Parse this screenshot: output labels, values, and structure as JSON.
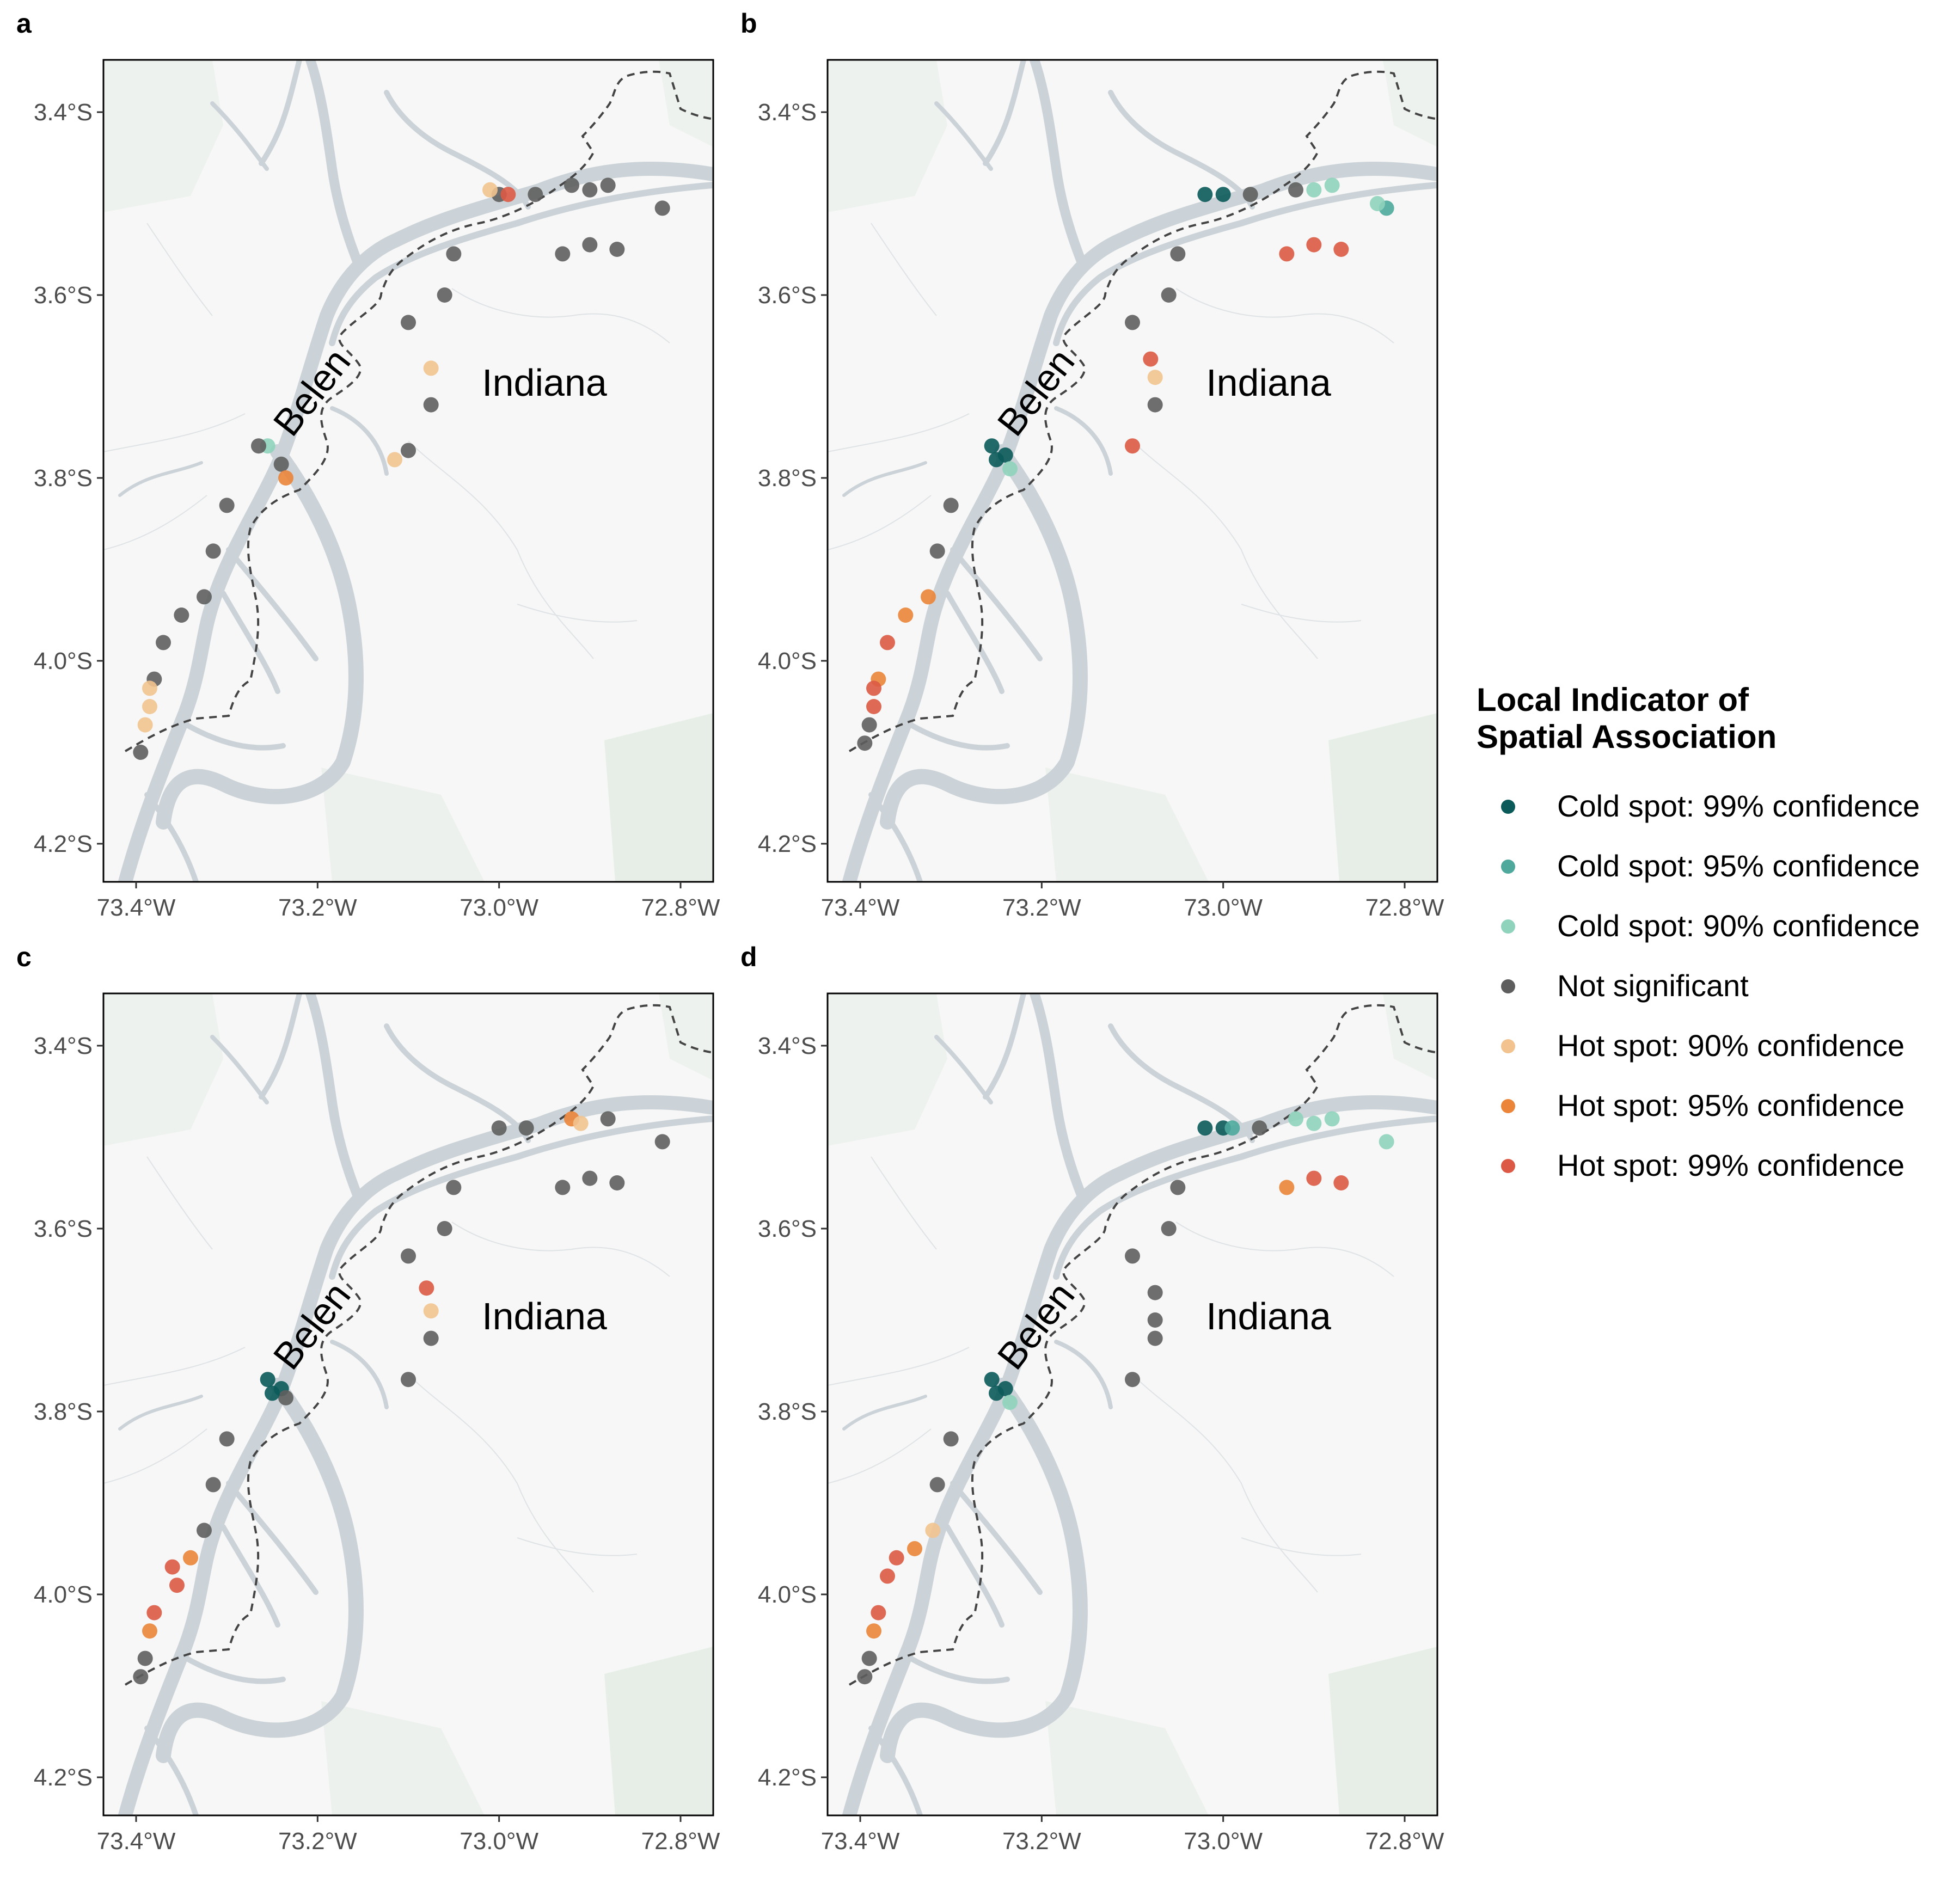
{
  "figure": {
    "panels": [
      {
        "letter": "a"
      },
      {
        "letter": "b"
      },
      {
        "letter": "c"
      },
      {
        "letter": "d"
      }
    ],
    "lon_ticks": [
      {
        "value": -73.4,
        "label": "73.4°W"
      },
      {
        "value": -73.2,
        "label": "73.2°W"
      },
      {
        "value": -73.0,
        "label": "73.0°W"
      },
      {
        "value": -72.8,
        "label": "72.8°W"
      }
    ],
    "lat_ticks": [
      {
        "value": -3.4,
        "label": "3.4°S"
      },
      {
        "value": -3.6,
        "label": "3.6°S"
      },
      {
        "value": -3.8,
        "label": "3.8°S"
      },
      {
        "value": -4.0,
        "label": "4.0°S"
      },
      {
        "value": -4.2,
        "label": "4.2°S"
      }
    ],
    "places": [
      {
        "name": "Belen",
        "lon": -73.195,
        "lat": -3.715,
        "rotate": -52
      },
      {
        "name": "Indiana",
        "lon": -72.95,
        "lat": -3.71,
        "rotate": 0
      }
    ],
    "legend": {
      "title_line1": "Local Indicator of",
      "title_line2": "Spatial Association",
      "items": [
        {
          "label": "Cold spot: 99% confidence",
          "color": "#0b5a5a"
        },
        {
          "label": "Cold spot: 95% confidence",
          "color": "#4ea89c"
        },
        {
          "label": "Cold spot: 90% confidence",
          "color": "#8fd3bd"
        },
        {
          "label": "Not significant",
          "color": "#5e5e5e"
        },
        {
          "label": "Hot spot: 90% confidence",
          "color": "#f2c38f"
        },
        {
          "label": "Hot spot: 95% confidence",
          "color": "#ea853a"
        },
        {
          "label": "Hot spot: 99% confidence",
          "color": "#dc5a45"
        }
      ]
    }
  },
  "chart_data": {
    "type": "scatter",
    "xlim": [
      -73.42,
      -72.76
    ],
    "ylim": [
      -4.24,
      -3.35
    ],
    "grid": false,
    "legend_position": "right",
    "panels": [
      {
        "letter": "a",
        "points": [
          [
            -73.0,
            -3.49,
            "ns"
          ],
          [
            -72.99,
            -3.49,
            "hot99"
          ],
          [
            -73.01,
            -3.485,
            "hot90"
          ],
          [
            -72.96,
            -3.49,
            "ns"
          ],
          [
            -72.92,
            -3.48,
            "ns"
          ],
          [
            -72.9,
            -3.485,
            "ns"
          ],
          [
            -72.88,
            -3.48,
            "ns"
          ],
          [
            -72.82,
            -3.505,
            "ns"
          ],
          [
            -72.9,
            -3.545,
            "ns"
          ],
          [
            -72.87,
            -3.55,
            "ns"
          ],
          [
            -72.93,
            -3.555,
            "ns"
          ],
          [
            -73.05,
            -3.555,
            "ns"
          ],
          [
            -73.06,
            -3.6,
            "ns"
          ],
          [
            -73.1,
            -3.63,
            "ns"
          ],
          [
            -73.075,
            -3.68,
            "hot90"
          ],
          [
            -73.075,
            -3.72,
            "ns"
          ],
          [
            -73.1,
            -3.77,
            "ns"
          ],
          [
            -73.115,
            -3.78,
            "hot90"
          ],
          [
            -73.255,
            -3.765,
            "cold90"
          ],
          [
            -73.24,
            -3.785,
            "ns"
          ],
          [
            -73.235,
            -3.8,
            "hot95"
          ],
          [
            -73.265,
            -3.765,
            "ns"
          ],
          [
            -73.3,
            -3.83,
            "ns"
          ],
          [
            -73.315,
            -3.88,
            "ns"
          ],
          [
            -73.325,
            -3.93,
            "ns"
          ],
          [
            -73.35,
            -3.95,
            "ns"
          ],
          [
            -73.37,
            -3.98,
            "ns"
          ],
          [
            -73.38,
            -4.02,
            "ns"
          ],
          [
            -73.385,
            -4.03,
            "hot90"
          ],
          [
            -73.385,
            -4.05,
            "hot90"
          ],
          [
            -73.39,
            -4.07,
            "hot90"
          ],
          [
            -73.395,
            -4.1,
            "ns"
          ]
        ]
      },
      {
        "letter": "b",
        "points": [
          [
            -73.02,
            -3.49,
            "cold99"
          ],
          [
            -73.0,
            -3.49,
            "cold99"
          ],
          [
            -72.97,
            -3.49,
            "ns"
          ],
          [
            -72.92,
            -3.485,
            "ns"
          ],
          [
            -72.9,
            -3.485,
            "cold90"
          ],
          [
            -72.88,
            -3.48,
            "cold90"
          ],
          [
            -72.82,
            -3.505,
            "cold95"
          ],
          [
            -72.83,
            -3.5,
            "cold90"
          ],
          [
            -72.9,
            -3.545,
            "hot99"
          ],
          [
            -72.87,
            -3.55,
            "hot99"
          ],
          [
            -72.93,
            -3.555,
            "hot99"
          ],
          [
            -73.05,
            -3.555,
            "ns"
          ],
          [
            -73.06,
            -3.6,
            "ns"
          ],
          [
            -73.1,
            -3.63,
            "ns"
          ],
          [
            -73.08,
            -3.67,
            "hot99"
          ],
          [
            -73.075,
            -3.69,
            "hot90"
          ],
          [
            -73.075,
            -3.72,
            "ns"
          ],
          [
            -73.1,
            -3.765,
            "hot99"
          ],
          [
            -73.255,
            -3.765,
            "cold99"
          ],
          [
            -73.24,
            -3.775,
            "cold99"
          ],
          [
            -73.235,
            -3.79,
            "cold90"
          ],
          [
            -73.25,
            -3.78,
            "cold99"
          ],
          [
            -73.3,
            -3.83,
            "ns"
          ],
          [
            -73.315,
            -3.88,
            "ns"
          ],
          [
            -73.325,
            -3.93,
            "hot95"
          ],
          [
            -73.35,
            -3.95,
            "hot95"
          ],
          [
            -73.37,
            -3.98,
            "hot99"
          ],
          [
            -73.38,
            -4.02,
            "hot95"
          ],
          [
            -73.385,
            -4.03,
            "hot99"
          ],
          [
            -73.385,
            -4.05,
            "hot99"
          ],
          [
            -73.39,
            -4.07,
            "ns"
          ],
          [
            -73.395,
            -4.09,
            "ns"
          ]
        ]
      },
      {
        "letter": "c",
        "points": [
          [
            -73.0,
            -3.49,
            "ns"
          ],
          [
            -72.97,
            -3.49,
            "ns"
          ],
          [
            -72.92,
            -3.48,
            "hot95"
          ],
          [
            -72.91,
            -3.485,
            "hot90"
          ],
          [
            -72.88,
            -3.48,
            "ns"
          ],
          [
            -72.82,
            -3.505,
            "ns"
          ],
          [
            -72.9,
            -3.545,
            "ns"
          ],
          [
            -72.87,
            -3.55,
            "ns"
          ],
          [
            -72.93,
            -3.555,
            "ns"
          ],
          [
            -73.05,
            -3.555,
            "ns"
          ],
          [
            -73.06,
            -3.6,
            "ns"
          ],
          [
            -73.1,
            -3.63,
            "ns"
          ],
          [
            -73.08,
            -3.665,
            "hot99"
          ],
          [
            -73.075,
            -3.69,
            "hot90"
          ],
          [
            -73.075,
            -3.72,
            "ns"
          ],
          [
            -73.1,
            -3.765,
            "ns"
          ],
          [
            -73.255,
            -3.765,
            "cold99"
          ],
          [
            -73.24,
            -3.775,
            "cold99"
          ],
          [
            -73.235,
            -3.785,
            "ns"
          ],
          [
            -73.25,
            -3.78,
            "cold99"
          ],
          [
            -73.3,
            -3.83,
            "ns"
          ],
          [
            -73.315,
            -3.88,
            "ns"
          ],
          [
            -73.325,
            -3.93,
            "ns"
          ],
          [
            -73.34,
            -3.96,
            "hot95"
          ],
          [
            -73.36,
            -3.97,
            "hot99"
          ],
          [
            -73.355,
            -3.99,
            "hot99"
          ],
          [
            -73.38,
            -4.02,
            "hot99"
          ],
          [
            -73.385,
            -4.04,
            "hot95"
          ],
          [
            -73.39,
            -4.07,
            "ns"
          ],
          [
            -73.395,
            -4.09,
            "ns"
          ]
        ]
      },
      {
        "letter": "d",
        "points": [
          [
            -73.02,
            -3.49,
            "cold99"
          ],
          [
            -73.0,
            -3.49,
            "cold99"
          ],
          [
            -72.99,
            -3.49,
            "cold95"
          ],
          [
            -72.96,
            -3.49,
            "ns"
          ],
          [
            -72.92,
            -3.48,
            "cold90"
          ],
          [
            -72.9,
            -3.485,
            "cold90"
          ],
          [
            -72.88,
            -3.48,
            "cold90"
          ],
          [
            -72.82,
            -3.505,
            "cold90"
          ],
          [
            -72.9,
            -3.545,
            "hot99"
          ],
          [
            -72.87,
            -3.55,
            "hot99"
          ],
          [
            -72.93,
            -3.555,
            "hot95"
          ],
          [
            -73.05,
            -3.555,
            "ns"
          ],
          [
            -73.06,
            -3.6,
            "ns"
          ],
          [
            -73.1,
            -3.63,
            "ns"
          ],
          [
            -73.075,
            -3.67,
            "ns"
          ],
          [
            -73.075,
            -3.7,
            "ns"
          ],
          [
            -73.075,
            -3.72,
            "ns"
          ],
          [
            -73.1,
            -3.765,
            "ns"
          ],
          [
            -73.255,
            -3.765,
            "cold99"
          ],
          [
            -73.24,
            -3.775,
            "cold99"
          ],
          [
            -73.235,
            -3.79,
            "cold90"
          ],
          [
            -73.25,
            -3.78,
            "cold99"
          ],
          [
            -73.3,
            -3.83,
            "ns"
          ],
          [
            -73.315,
            -3.88,
            "ns"
          ],
          [
            -73.32,
            -3.93,
            "hot90"
          ],
          [
            -73.34,
            -3.95,
            "hot95"
          ],
          [
            -73.36,
            -3.96,
            "hot99"
          ],
          [
            -73.37,
            -3.98,
            "hot99"
          ],
          [
            -73.38,
            -4.02,
            "hot99"
          ],
          [
            -73.385,
            -4.04,
            "hot95"
          ],
          [
            -73.39,
            -4.07,
            "ns"
          ],
          [
            -73.395,
            -4.09,
            "ns"
          ]
        ]
      }
    ]
  }
}
